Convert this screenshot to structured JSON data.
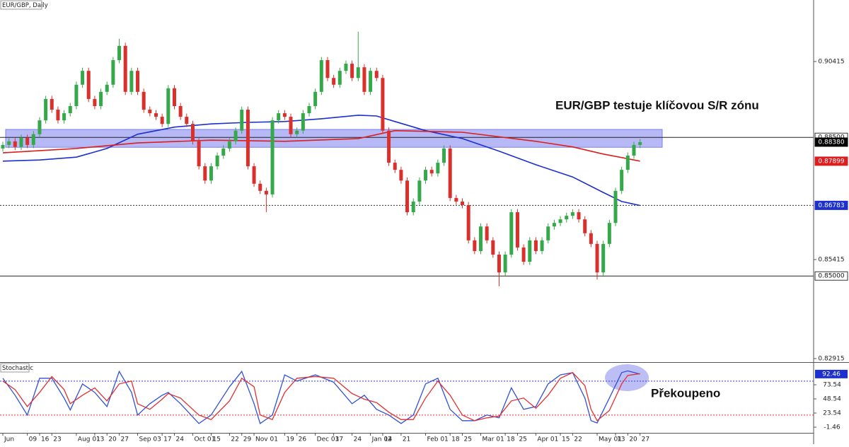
{
  "chart_data": {
    "type": "candlestick",
    "title": "EUR/GBP, Daily",
    "annotation": "EUR/GBP testuje klíčovou S/R zónu",
    "up_color": "#35a94a",
    "down_color": "#d9302c",
    "categories": [
      "Jun",
      null,
      null,
      null,
      "09",
      null,
      "16",
      null,
      "23",
      null,
      null,
      null,
      "Aug 01",
      null,
      null,
      "13",
      null,
      "20",
      null,
      "27",
      null,
      null,
      "Sep 03",
      null,
      null,
      null,
      "17",
      null,
      "24",
      null,
      null,
      "Oct 01",
      null,
      null,
      "15",
      null,
      null,
      "22",
      null,
      "29",
      null,
      "Nov 01",
      null,
      null,
      null,
      null,
      "19",
      null,
      "26",
      null,
      null,
      "Dec 03",
      null,
      null,
      "17",
      null,
      null,
      "24",
      null,
      null,
      "Jan 02",
      null,
      "14",
      null,
      null,
      "21",
      null,
      null,
      null,
      "Feb 01",
      null,
      null,
      null,
      "18",
      null,
      "25",
      null,
      null,
      "Mar 01",
      null,
      null,
      null,
      "18",
      null,
      "25",
      null,
      null,
      "Apr 01",
      null,
      null,
      null,
      "15",
      null,
      "22",
      null,
      null,
      null,
      "May 01",
      null,
      null,
      "13",
      null,
      "20",
      null,
      "27"
    ],
    "open": [
      0.8822,
      0.8831,
      0.884,
      0.8826,
      0.8849,
      0.8831,
      0.8858,
      0.8893,
      0.8947,
      0.892,
      0.8893,
      0.8911,
      0.8929,
      0.8983,
      0.9018,
      0.8947,
      0.8929,
      0.8965,
      0.8983,
      0.9045,
      0.9081,
      0.8965,
      0.9018,
      0.8965,
      0.892,
      0.8911,
      0.8902,
      0.8884,
      0.8974,
      0.8929,
      0.8902,
      0.8884,
      0.884,
      0.8777,
      0.8741,
      0.8777,
      0.8804,
      0.8822,
      0.884,
      0.8867,
      0.892,
      0.8777,
      0.8733,
      0.8715,
      0.8706,
      0.8893,
      0.8911,
      0.8902,
      0.8858,
      0.8867,
      0.8911,
      0.8929,
      0.8965,
      0.9045,
      0.9,
      0.8983,
      0.9018,
      0.9036,
      0.9,
      0.9027,
      0.8965,
      0.9018,
      0.9,
      0.8867,
      0.8786,
      0.8768,
      0.8741,
      0.8661,
      0.8688,
      0.8741,
      0.8768,
      0.8759,
      0.8786,
      0.8822,
      0.8697,
      0.8688,
      0.8679,
      0.859,
      0.8563,
      0.8625,
      0.859,
      0.8554,
      0.8509,
      0.8554,
      0.8661,
      0.8572,
      0.8536,
      0.859,
      0.8563,
      0.859,
      0.8625,
      0.8634,
      0.8643,
      0.8652,
      0.8661,
      0.8643,
      0.8608,
      0.8581,
      0.8509,
      0.8581,
      0.8634,
      0.8715,
      0.8768,
      0.8804,
      0.8831
    ],
    "high": [
      0.8839,
      0.8848,
      0.8848,
      0.8857,
      0.8857,
      0.8866,
      0.8901,
      0.8955,
      0.8955,
      0.8928,
      0.8919,
      0.8937,
      0.8991,
      0.9026,
      0.9026,
      0.8955,
      0.8973,
      0.8991,
      0.9053,
      0.9099,
      0.9089,
      0.9026,
      0.9026,
      0.8973,
      0.8928,
      0.8919,
      0.891,
      0.8982,
      0.8982,
      0.8937,
      0.891,
      0.8892,
      0.8848,
      0.8785,
      0.8785,
      0.8812,
      0.883,
      0.8848,
      0.8875,
      0.8928,
      0.8928,
      0.8785,
      0.8741,
      0.8723,
      0.8901,
      0.8919,
      0.8919,
      0.891,
      0.8875,
      0.8919,
      0.8937,
      0.8973,
      0.9053,
      0.9053,
      0.9008,
      0.9026,
      0.9044,
      0.9044,
      0.9117,
      0.9035,
      0.9026,
      0.9026,
      0.9008,
      0.8875,
      0.8794,
      0.8776,
      0.8749,
      0.8696,
      0.8749,
      0.8776,
      0.8776,
      0.8794,
      0.883,
      0.883,
      0.8705,
      0.8696,
      0.8687,
      0.8598,
      0.8633,
      0.8633,
      0.8598,
      0.8562,
      0.8562,
      0.8669,
      0.8669,
      0.858,
      0.8598,
      0.8598,
      0.8598,
      0.8633,
      0.8642,
      0.8651,
      0.866,
      0.8669,
      0.8669,
      0.8651,
      0.8616,
      0.8589,
      0.8589,
      0.8642,
      0.8723,
      0.8776,
      0.8812,
      0.8839,
      0.8846
    ],
    "low": [
      0.8814,
      0.8823,
      0.8818,
      0.8818,
      0.8823,
      0.8823,
      0.885,
      0.8885,
      0.8912,
      0.8885,
      0.8885,
      0.8903,
      0.8921,
      0.8975,
      0.8939,
      0.8921,
      0.8921,
      0.8957,
      0.8975,
      0.9037,
      0.8957,
      0.8957,
      0.8957,
      0.8912,
      0.8903,
      0.8894,
      0.8876,
      0.8876,
      0.8921,
      0.8894,
      0.8876,
      0.8832,
      0.8769,
      0.8733,
      0.8733,
      0.8769,
      0.8796,
      0.8814,
      0.8832,
      0.8859,
      0.8769,
      0.8725,
      0.8707,
      0.8661,
      0.8698,
      0.8885,
      0.8894,
      0.885,
      0.885,
      0.8859,
      0.8903,
      0.8921,
      0.8957,
      0.8992,
      0.8975,
      0.8975,
      0.901,
      0.8992,
      0.8992,
      0.8957,
      0.8957,
      0.8992,
      0.8859,
      0.8778,
      0.876,
      0.8733,
      0.8653,
      0.8653,
      0.868,
      0.8733,
      0.8751,
      0.8751,
      0.8778,
      0.8689,
      0.868,
      0.8671,
      0.8582,
      0.8555,
      0.8555,
      0.8582,
      0.8546,
      0.8474,
      0.8501,
      0.8546,
      0.8564,
      0.8528,
      0.8528,
      0.8555,
      0.8555,
      0.8582,
      0.8617,
      0.8626,
      0.8635,
      0.8644,
      0.8635,
      0.86,
      0.8573,
      0.8491,
      0.8501,
      0.8573,
      0.8626,
      0.8707,
      0.876,
      0.8796,
      0.8823
    ],
    "close": [
      0.8831,
      0.884,
      0.8826,
      0.8849,
      0.8831,
      0.8858,
      0.8893,
      0.8947,
      0.892,
      0.8893,
      0.8911,
      0.8929,
      0.8983,
      0.9018,
      0.8947,
      0.8929,
      0.8965,
      0.8983,
      0.9045,
      0.9081,
      0.8965,
      0.9018,
      0.8965,
      0.892,
      0.8911,
      0.8902,
      0.8884,
      0.8974,
      0.8929,
      0.8902,
      0.8884,
      0.884,
      0.8777,
      0.8741,
      0.8777,
      0.8804,
      0.8822,
      0.884,
      0.8867,
      0.892,
      0.8777,
      0.8733,
      0.8715,
      0.8706,
      0.8893,
      0.8911,
      0.8902,
      0.8858,
      0.8867,
      0.8911,
      0.8929,
      0.8965,
      0.9045,
      0.9,
      0.8983,
      0.9018,
      0.9036,
      0.9,
      0.9027,
      0.8965,
      0.9018,
      0.9,
      0.8867,
      0.8786,
      0.8768,
      0.8741,
      0.8661,
      0.8688,
      0.8741,
      0.8768,
      0.8759,
      0.8786,
      0.8822,
      0.8697,
      0.8688,
      0.8679,
      0.859,
      0.8563,
      0.8625,
      0.859,
      0.8554,
      0.8509,
      0.8554,
      0.8661,
      0.8572,
      0.8536,
      0.859,
      0.8563,
      0.859,
      0.8625,
      0.8634,
      0.8643,
      0.8652,
      0.8661,
      0.8643,
      0.8608,
      0.8581,
      0.8509,
      0.8581,
      0.8634,
      0.8715,
      0.8768,
      0.8804,
      0.8831,
      0.8838
    ],
    "ylim": [
      0.82825,
      0.91969
    ],
    "yticks": [
      0.90415,
      0.85415,
      0.82915
    ],
    "zone": [
      0.8825,
      0.887
    ],
    "zone_color": "#7b7ff0",
    "moving_averages": [
      {
        "color": "#1c2fd0",
        "x": [
          0,
          6,
          12,
          17,
          22,
          28,
          34,
          40,
          46,
          52,
          58,
          61,
          64,
          69,
          75,
          81,
          87,
          93,
          98,
          101,
          104
        ],
        "values": [
          0.879,
          0.8793,
          0.88,
          0.8822,
          0.8858,
          0.8876,
          0.8884,
          0.8888,
          0.889,
          0.8897,
          0.8906,
          0.8904,
          0.889,
          0.8867,
          0.8847,
          0.8815,
          0.8781,
          0.875,
          0.8711,
          0.8688,
          0.8678
        ]
      },
      {
        "color": "#dc1e1e",
        "x": [
          0,
          12,
          22,
          34,
          46,
          58,
          64,
          75,
          87,
          93,
          98,
          104
        ],
        "values": [
          0.8811,
          0.8822,
          0.8836,
          0.8843,
          0.884,
          0.8847,
          0.8867,
          0.8863,
          0.884,
          0.8826,
          0.8808,
          0.879
        ]
      }
    ],
    "price_tags": [
      {
        "value": 0.885,
        "label": "0.88500",
        "color": "#ffffff",
        "line": "solid"
      },
      {
        "value": 0.8838,
        "label": "0.88380",
        "color": "#000000"
      },
      {
        "value": 0.87899,
        "label": "0.87899",
        "color": "#dc1e1e"
      },
      {
        "value": 0.86783,
        "label": "0.86783",
        "color": "#1c2fd0",
        "line": "dotted"
      },
      {
        "value": 0.85,
        "label": "0.85000",
        "color": "#ffffff",
        "line": "solid"
      }
    ],
    "stochastic": {
      "title": "Stochastic",
      "annotation": "Překoupeno",
      "ylim": [
        -11.46,
        109.79
      ],
      "yticks": [
        73.54,
        48.54,
        23.54,
        -1.46
      ],
      "levels": [
        {
          "value": 80,
          "color": "#3b3bd0"
        },
        {
          "value": 20,
          "color": "#e03030"
        }
      ],
      "last_value": 92.46,
      "lines": [
        {
          "color": "#3050d8",
          "x": [
            0,
            2,
            4,
            6,
            8,
            10,
            11,
            13,
            15,
            17,
            19,
            21,
            22,
            24,
            26,
            27,
            29,
            32,
            34,
            37,
            39,
            41,
            42,
            44,
            46,
            48,
            51,
            54,
            57,
            59,
            61,
            63,
            65,
            67,
            69,
            71,
            73,
            75,
            77,
            79,
            81,
            83,
            85,
            87,
            89,
            91,
            93,
            95,
            96,
            97,
            99,
            101,
            102,
            104
          ],
          "values": [
            85,
            55,
            20,
            85,
            85,
            50,
            29,
            75,
            60,
            35,
            97,
            60,
            20,
            40,
            55,
            60,
            40,
            5,
            20,
            70,
            97,
            40,
            5,
            20,
            91,
            80,
            91,
            78,
            40,
            55,
            30,
            20,
            5,
            20,
            75,
            85,
            30,
            10,
            10,
            20,
            15,
            68,
            30,
            35,
            75,
            91,
            95,
            50,
            10,
            6,
            50,
            95,
            98,
            92.46
          ]
        },
        {
          "color": "#e03030",
          "x": [
            0,
            2,
            4,
            6,
            8,
            10,
            11,
            13,
            15,
            17,
            19,
            21,
            22,
            24,
            26,
            27,
            29,
            32,
            34,
            37,
            39,
            41,
            42,
            44,
            46,
            48,
            51,
            54,
            57,
            59,
            61,
            63,
            65,
            67,
            69,
            71,
            73,
            75,
            77,
            79,
            81,
            83,
            85,
            87,
            89,
            91,
            93,
            95,
            96,
            97,
            99,
            101,
            102,
            104
          ],
          "values": [
            80,
            65,
            35,
            60,
            88,
            65,
            40,
            55,
            68,
            45,
            75,
            80,
            40,
            30,
            48,
            58,
            50,
            20,
            12,
            45,
            85,
            70,
            20,
            12,
            60,
            85,
            88,
            85,
            58,
            48,
            42,
            25,
            12,
            12,
            50,
            80,
            55,
            20,
            10,
            15,
            18,
            45,
            50,
            32,
            55,
            85,
            95,
            72,
            30,
            10,
            28,
            75,
            90,
            93
          ]
        }
      ]
    }
  }
}
